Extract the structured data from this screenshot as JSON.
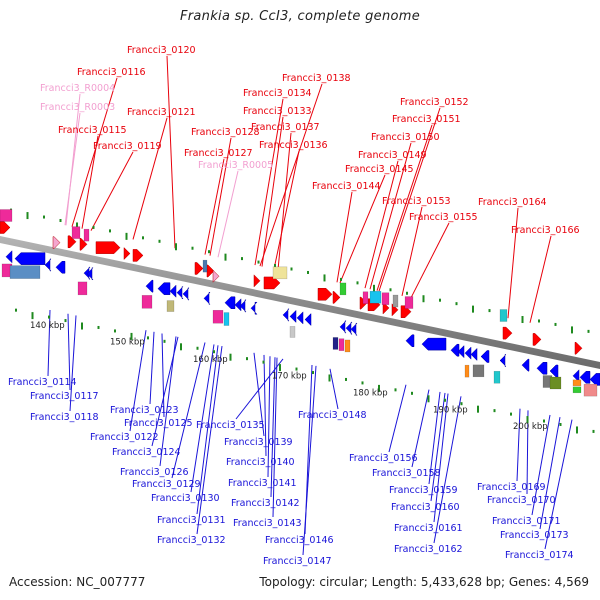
{
  "title": "Frankia sp. CcI3, complete genome",
  "footer": {
    "accession": "Accession: NC_007777",
    "summary": "Topology: circular; Length: 5,433,628 bp; Genes: 4,569"
  },
  "colors": {
    "forward_label": "#e8000b",
    "rna_label": "#f29fd0",
    "reverse_label": "#1a14d8",
    "backbone": "#8a8a8a",
    "tick": "#1f8a1f",
    "forward_gene": "#ff0000",
    "reverse_gene": "#0000ff"
  },
  "scale_labels": [
    "140 kbp",
    "150 kbp",
    "160 kbp",
    "170 kbp",
    "180 kbp",
    "190 kbp",
    "200 kbp"
  ],
  "top_labels": [
    {
      "text": "Francci3_0120",
      "kind": "forward"
    },
    {
      "text": "Francci3_0116",
      "kind": "forward"
    },
    {
      "text": "Francci3_R0004",
      "kind": "rna"
    },
    {
      "text": "Francci3_R0003",
      "kind": "rna"
    },
    {
      "text": "Francci3_0121",
      "kind": "forward"
    },
    {
      "text": "Francci3_0115",
      "kind": "forward"
    },
    {
      "text": "Francci3_0119",
      "kind": "forward"
    },
    {
      "text": "Francci3_0138",
      "kind": "forward"
    },
    {
      "text": "Francci3_0134",
      "kind": "forward"
    },
    {
      "text": "Francci3_0133",
      "kind": "forward"
    },
    {
      "text": "Francci3_0137",
      "kind": "forward"
    },
    {
      "text": "Francci3_0128",
      "kind": "forward"
    },
    {
      "text": "Francci3_0136",
      "kind": "forward"
    },
    {
      "text": "Francci3_0127",
      "kind": "forward"
    },
    {
      "text": "Francci3_R0005",
      "kind": "rna"
    },
    {
      "text": "Francci3_0152",
      "kind": "forward"
    },
    {
      "text": "Francci3_0151",
      "kind": "forward"
    },
    {
      "text": "Francci3_0150",
      "kind": "forward"
    },
    {
      "text": "Francci3_0149",
      "kind": "forward"
    },
    {
      "text": "Francci3_0145",
      "kind": "forward"
    },
    {
      "text": "Francci3_0144",
      "kind": "forward"
    },
    {
      "text": "Francci3_0153",
      "kind": "forward"
    },
    {
      "text": "Francci3_0164",
      "kind": "forward"
    },
    {
      "text": "Francci3_0155",
      "kind": "forward"
    },
    {
      "text": "Francci3_0166",
      "kind": "forward"
    }
  ],
  "bottom_labels": [
    {
      "text": "Francci3_0114"
    },
    {
      "text": "Francci3_0117"
    },
    {
      "text": "Francci3_0118"
    },
    {
      "text": "Francci3_0123"
    },
    {
      "text": "Francci3_0125"
    },
    {
      "text": "Francci3_0122"
    },
    {
      "text": "Francci3_0124"
    },
    {
      "text": "Francci3_0126"
    },
    {
      "text": "Francci3_0129"
    },
    {
      "text": "Francci3_0130"
    },
    {
      "text": "Francci3_0131"
    },
    {
      "text": "Francci3_0132"
    },
    {
      "text": "Francci3_0135"
    },
    {
      "text": "Francci3_0139"
    },
    {
      "text": "Francci3_0140"
    },
    {
      "text": "Francci3_0141"
    },
    {
      "text": "Francci3_0142"
    },
    {
      "text": "Francci3_0143"
    },
    {
      "text": "Francci3_0146"
    },
    {
      "text": "Francci3_0147"
    },
    {
      "text": "Francci3_0148"
    },
    {
      "text": "Francci3_0156"
    },
    {
      "text": "Francci3_0158"
    },
    {
      "text": "Francci3_0159"
    },
    {
      "text": "Francci3_0160"
    },
    {
      "text": "Francci3_0161"
    },
    {
      "text": "Francci3_0162"
    },
    {
      "text": "Francci3_0169"
    },
    {
      "text": "Francci3_0170"
    },
    {
      "text": "Francci3_0171"
    },
    {
      "text": "Francci3_0173"
    },
    {
      "text": "Francci3_0174"
    }
  ]
}
